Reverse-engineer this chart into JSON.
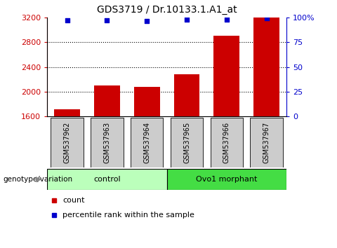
{
  "title": "GDS3719 / Dr.10133.1.A1_at",
  "categories": [
    "GSM537962",
    "GSM537963",
    "GSM537964",
    "GSM537965",
    "GSM537966",
    "GSM537967"
  ],
  "bar_values": [
    1720,
    2100,
    2080,
    2280,
    2900,
    3200
  ],
  "percentile_values": [
    97,
    97,
    96,
    98,
    98,
    99
  ],
  "bar_color": "#cc0000",
  "dot_color": "#0000cc",
  "ylim_left": [
    1600,
    3200
  ],
  "ylim_right": [
    0,
    100
  ],
  "yticks_left": [
    1600,
    2000,
    2400,
    2800,
    3200
  ],
  "yticks_right": [
    0,
    25,
    50,
    75,
    100
  ],
  "ytick_labels_right": [
    "0",
    "25",
    "50",
    "75",
    "100%"
  ],
  "grid_values": [
    2000,
    2400,
    2800
  ],
  "group_labels": [
    "control",
    "Ovo1 morphant"
  ],
  "group_ranges": [
    [
      0,
      3
    ],
    [
      3,
      6
    ]
  ],
  "group_colors_light": "#bbffbb",
  "group_colors_dark": "#44dd44",
  "genotype_label": "genotype/variation",
  "legend_count_label": "count",
  "legend_percentile_label": "percentile rank within the sample",
  "bar_width": 0.65,
  "left_axis_color": "#cc0000",
  "right_axis_color": "#0000cc",
  "gray_box_color": "#cccccc",
  "fig_width": 4.8,
  "fig_height": 3.54
}
